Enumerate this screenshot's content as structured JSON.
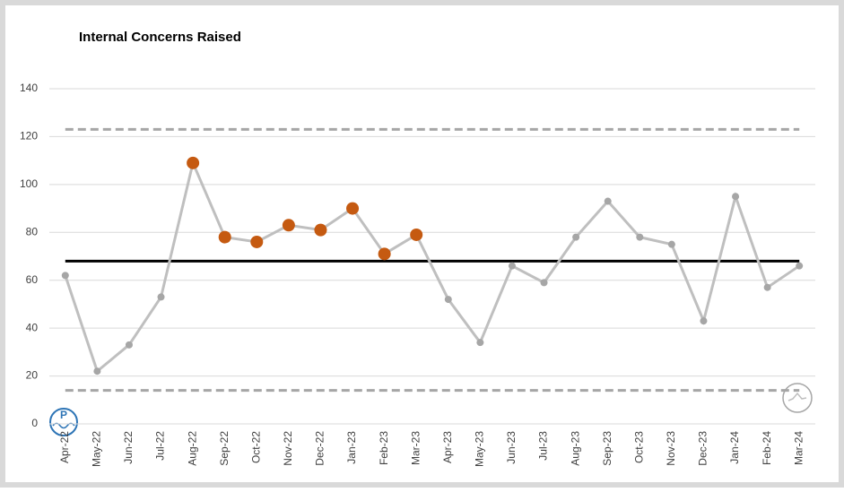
{
  "chart_data": {
    "type": "line",
    "title": "Internal Concerns Raised",
    "categories": [
      "Apr-22",
      "May-22",
      "Jun-22",
      "Jul-22",
      "Aug-22",
      "Sep-22",
      "Oct-22",
      "Nov-22",
      "Dec-22",
      "Jan-23",
      "Feb-23",
      "Mar-23",
      "Apr-23",
      "May-23",
      "Jun-23",
      "Jul-23",
      "Aug-23",
      "Sep-23",
      "Oct-23",
      "Nov-23",
      "Dec-23",
      "Jan-24",
      "Feb-24",
      "Mar-24"
    ],
    "values": [
      62,
      22,
      33,
      53,
      109,
      78,
      76,
      83,
      81,
      90,
      71,
      79,
      52,
      34,
      66,
      59,
      78,
      93,
      78,
      75,
      43,
      95,
      57,
      66
    ],
    "color": "#bfbfbf",
    "point_colors": [
      "#a6a6a6",
      "#a6a6a6",
      "#a6a6a6",
      "#a6a6a6",
      "#c55a11",
      "#c55a11",
      "#c55a11",
      "#c55a11",
      "#c55a11",
      "#c55a11",
      "#c55a11",
      "#c55a11",
      "#a6a6a6",
      "#a6a6a6",
      "#a6a6a6",
      "#a6a6a6",
      "#a6a6a6",
      "#a6a6a6",
      "#a6a6a6",
      "#a6a6a6",
      "#a6a6a6",
      "#a6a6a6",
      "#a6a6a6",
      "#a6a6a6"
    ],
    "mean": 68,
    "upper_limit": 123,
    "lower_limit": 14,
    "ylim": [
      0,
      140
    ],
    "yticks": [
      0,
      20,
      40,
      60,
      80,
      100,
      120,
      140
    ],
    "grid": true
  }
}
